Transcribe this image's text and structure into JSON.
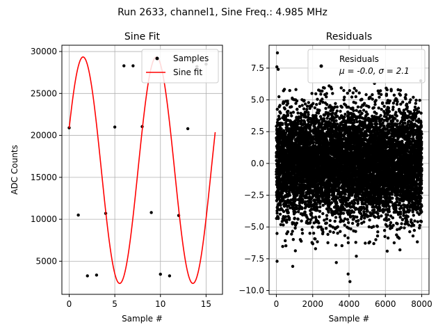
{
  "suptitle": "Run 2633, channel1, Sine Freq.: 4.985 MHz",
  "chart_data": [
    {
      "type": "scatter+line",
      "title": "Sine Fit",
      "xlabel": "Sample #",
      "ylabel": "ADC Counts",
      "xlim": [
        -0.8,
        16.8
      ],
      "ylim": [
        1050,
        30750
      ],
      "xticks": [
        0,
        5,
        10,
        15
      ],
      "yticks": [
        5000,
        10000,
        15000,
        20000,
        25000,
        30000
      ],
      "grid": true,
      "legend_position": "top-right",
      "series": [
        {
          "name": "Samples",
          "kind": "points",
          "color": "#000000",
          "x": [
            0,
            1,
            2,
            3,
            4,
            5,
            6,
            7,
            8,
            9,
            10,
            11,
            12,
            13,
            14,
            15
          ],
          "y": [
            20900,
            10500,
            3250,
            3350,
            10700,
            21000,
            28300,
            28300,
            21050,
            10800,
            3450,
            3250,
            10450,
            20800,
            28200,
            28500
          ]
        },
        {
          "name": "Sine fit",
          "kind": "line",
          "color": "#ff0000",
          "x_range": [
            0,
            16
          ],
          "model": {
            "offset": 15850,
            "amplitude": 13500,
            "period": 8.024,
            "phase": 0.38
          }
        }
      ]
    },
    {
      "type": "scatter",
      "title": "Residuals",
      "xlabel": "Sample #",
      "ylabel": "",
      "xlim": [
        -400,
        8400
      ],
      "ylim": [
        -10.3,
        9.3
      ],
      "xticks": [
        0,
        2000,
        4000,
        6000,
        8000
      ],
      "yticks": [
        -10.0,
        -7.5,
        -5.0,
        -2.5,
        0.0,
        2.5,
        5.0,
        7.5
      ],
      "grid": true,
      "legend_position": "top-right",
      "series": [
        {
          "name": "Residuals",
          "kind": "points",
          "color": "#000000",
          "stats_label": "μ = -0.0, σ = 2.1",
          "n_samples": 8000,
          "mean": 0.0,
          "std": 2.1,
          "outliers": [
            {
              "x": 60,
              "y": 8.7
            },
            {
              "x": 30,
              "y": 7.6
            },
            {
              "x": 100,
              "y": 7.4
            },
            {
              "x": 40,
              "y": -7.7
            },
            {
              "x": 900,
              "y": -8.1
            },
            {
              "x": 4050,
              "y": -9.3
            },
            {
              "x": 3950,
              "y": -8.7
            },
            {
              "x": 3300,
              "y": -7.8
            },
            {
              "x": 4400,
              "y": -7.3
            },
            {
              "x": 6100,
              "y": -6.9
            },
            {
              "x": 6800,
              "y": -6.8
            },
            {
              "x": 2900,
              "y": 6.1
            },
            {
              "x": 6700,
              "y": 5.8
            },
            {
              "x": 7950,
              "y": 6.5
            },
            {
              "x": 5400,
              "y": 6.3
            }
          ]
        }
      ]
    }
  ]
}
